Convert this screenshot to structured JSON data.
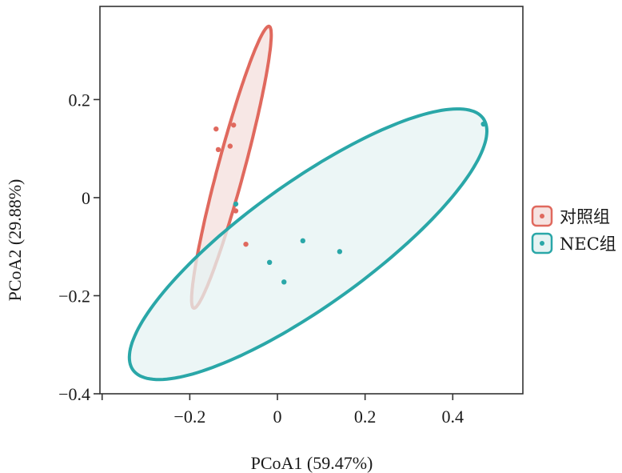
{
  "chart_data": {
    "type": "scatter",
    "title": "",
    "xlabel": "PCoA1 (59.47%)",
    "ylabel": "PCoA2 (29.88%)",
    "xlim": [
      -0.405,
      0.56
    ],
    "ylim": [
      -0.4,
      0.39
    ],
    "x_ticks": [
      -0.2,
      0,
      0.2,
      0.4
    ],
    "x_tick_labels": [
      "−0.2",
      "0",
      "0.2",
      "0.4"
    ],
    "y_ticks": [
      -0.4,
      -0.2,
      0,
      0.2
    ],
    "y_tick_labels": [
      "−0.4",
      "−0.2",
      "0",
      "0.2"
    ],
    "grid": false,
    "legend_position": "right",
    "series": [
      {
        "name": "对照组",
        "color": "#e0695e",
        "fill": "#f6e3e1",
        "points": [
          {
            "x": -0.14,
            "y": 0.14
          },
          {
            "x": -0.1,
            "y": 0.148
          },
          {
            "x": -0.108,
            "y": 0.105
          },
          {
            "x": -0.135,
            "y": 0.098
          },
          {
            "x": -0.095,
            "y": -0.027
          },
          {
            "x": -0.072,
            "y": -0.095
          }
        ],
        "ellipse": {
          "cx": -0.105,
          "cy": 0.062,
          "rx": 0.3,
          "ry": 0.03,
          "angle_deg": 73.3
        }
      },
      {
        "name": "NEC组",
        "color": "#2aa7a8",
        "fill": "#e6f3f3",
        "points": [
          {
            "x": -0.095,
            "y": -0.013
          },
          {
            "x": -0.018,
            "y": -0.132
          },
          {
            "x": 0.015,
            "y": -0.172
          },
          {
            "x": 0.058,
            "y": -0.088
          },
          {
            "x": 0.142,
            "y": -0.11
          },
          {
            "x": 0.47,
            "y": 0.15
          }
        ],
        "ellipse": {
          "cx": 0.07,
          "cy": -0.095,
          "rx": 0.475,
          "ry": 0.13,
          "angle_deg": 32.2
        }
      }
    ]
  }
}
